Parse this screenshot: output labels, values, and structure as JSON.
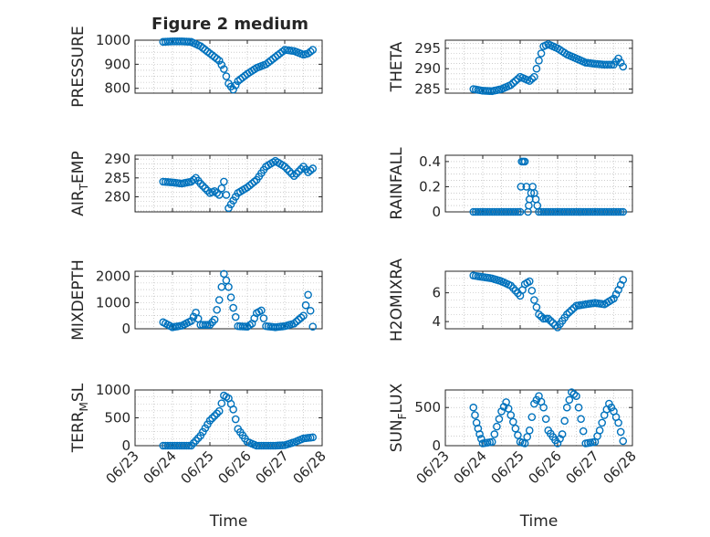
{
  "figure": {
    "title": "Figure 2 medium",
    "marker_color": "#0072BD",
    "marker": "circle-open"
  },
  "chart_data": [
    {
      "type": "scatter",
      "title": "Figure 2 medium",
      "ylabel": "PRESSURE",
      "xlabel": "",
      "ylim": [
        780,
        1000
      ],
      "yticks": [
        800,
        900,
        1000
      ],
      "ytick_labels": [
        "800",
        "900",
        "1000"
      ],
      "xlim": [
        "06/23",
        "06/28"
      ],
      "xticks": [
        "06/23",
        "06/24",
        "06/25",
        "06/26",
        "06/27",
        "06/28"
      ],
      "show_xticklabels": false,
      "grid": true,
      "x": [
        "06/23 18:00",
        "06/24 00:00",
        "06/24 06:00",
        "06/24 12:00",
        "06/24 18:00",
        "06/25 00:00",
        "06/25 03:00",
        "06/25 06:00",
        "06/25 09:00",
        "06/25 12:00",
        "06/25 15:00",
        "06/25 18:00",
        "06/26 00:00",
        "06/26 06:00",
        "06/26 12:00",
        "06/26 18:00",
        "06/27 00:00",
        "06/27 06:00",
        "06/27 12:00",
        "06/27 15:00",
        "06/27 18:00"
      ],
      "y": [
        993,
        995,
        995,
        993,
        975,
        945,
        930,
        915,
        880,
        820,
        795,
        830,
        860,
        885,
        900,
        930,
        960,
        955,
        940,
        945,
        960
      ]
    },
    {
      "type": "scatter",
      "ylabel": "THETA",
      "xlabel": "",
      "ylim": [
        284,
        297
      ],
      "yticks": [
        285,
        290,
        295
      ],
      "ytick_labels": [
        "285",
        "290",
        "295"
      ],
      "xlim": [
        "06/23",
        "06/28"
      ],
      "xticks": [
        "06/23",
        "06/24",
        "06/25",
        "06/26",
        "06/27",
        "06/28"
      ],
      "show_xticklabels": false,
      "grid": true,
      "x": [
        "06/23 18:00",
        "06/24 00:00",
        "06/24 06:00",
        "06/24 12:00",
        "06/24 18:00",
        "06/25 00:00",
        "06/25 06:00",
        "06/25 09:00",
        "06/25 12:00",
        "06/25 15:00",
        "06/25 18:00",
        "06/26 00:00",
        "06/26 06:00",
        "06/26 12:00",
        "06/26 18:00",
        "06/27 00:00",
        "06/27 06:00",
        "06/27 12:00",
        "06/27 15:00",
        "06/27 18:00"
      ],
      "y": [
        285,
        284.6,
        284.5,
        285,
        286,
        288,
        287,
        288,
        292,
        295.5,
        296,
        295,
        293.5,
        292.5,
        291.5,
        291.2,
        291,
        291,
        292.5,
        290.5
      ]
    },
    {
      "type": "scatter",
      "ylabel": "AIR_TEMP",
      "ylabel_parts": [
        "AIR",
        "T",
        "EMP"
      ],
      "xlabel": "",
      "ylim": [
        276,
        291
      ],
      "yticks": [
        280,
        285,
        290
      ],
      "ytick_labels": [
        "280",
        "285",
        "290"
      ],
      "xlim": [
        "06/23",
        "06/28"
      ],
      "xticks": [
        "06/23",
        "06/24",
        "06/25",
        "06/26",
        "06/27",
        "06/28"
      ],
      "show_xticklabels": false,
      "grid": true,
      "x": [
        "06/23 18:00",
        "06/24 00:00",
        "06/24 06:00",
        "06/24 12:00",
        "06/24 15:00",
        "06/24 18:00",
        "06/25 00:00",
        "06/25 03:00",
        "06/25 06:00",
        "06/25 09:00",
        "06/25 12:00",
        "06/25 15:00",
        "06/25 18:00",
        "06/26 00:00",
        "06/26 06:00",
        "06/26 12:00",
        "06/26 18:00",
        "06/27 00:00",
        "06/27 06:00",
        "06/27 12:00",
        "06/27 15:00",
        "06/27 18:00"
      ],
      "y": [
        284,
        283.8,
        283.5,
        284,
        285,
        283.5,
        281,
        281.5,
        280.5,
        284,
        277,
        279,
        281,
        282.5,
        284.5,
        288,
        289.5,
        288,
        285.5,
        288,
        286.5,
        287.5
      ]
    },
    {
      "type": "scatter",
      "ylabel": "RAINFALL",
      "xlabel": "",
      "ylim": [
        0,
        0.45
      ],
      "yticks": [
        0,
        0.2,
        0.4
      ],
      "ytick_labels": [
        "0",
        "0.2",
        "0.4"
      ],
      "xlim": [
        "06/23",
        "06/28"
      ],
      "xticks": [
        "06/23",
        "06/24",
        "06/25",
        "06/26",
        "06/27",
        "06/28"
      ],
      "show_xticklabels": false,
      "grid": true,
      "x": [
        "06/23 18:00",
        "06/24 00:00",
        "06/24 06:00",
        "06/24 12:00",
        "06/24 18:00",
        "06/25 00:00",
        "06/25 01:00",
        "06/25 03:00",
        "06/25 05:00",
        "06/25 06:00",
        "06/25 08:00",
        "06/25 10:00",
        "06/25 12:00",
        "06/25 18:00",
        "06/26 00:00",
        "06/26 12:00",
        "06/27 00:00",
        "06/27 12:00",
        "06/27 18:00"
      ],
      "y": [
        0,
        0,
        0,
        0,
        0,
        0,
        0.4,
        0.4,
        0,
        0.1,
        0.2,
        0.1,
        0,
        0,
        0,
        0,
        0,
        0,
        0
      ]
    },
    {
      "type": "scatter",
      "ylabel": "MIXDEPTH",
      "xlabel": "",
      "ylim": [
        0,
        2200
      ],
      "yticks": [
        0,
        1000,
        2000
      ],
      "ytick_labels": [
        "0",
        "1000",
        "2000"
      ],
      "xlim": [
        "06/23",
        "06/28"
      ],
      "xticks": [
        "06/23",
        "06/24",
        "06/25",
        "06/26",
        "06/27",
        "06/28"
      ],
      "show_xticklabels": false,
      "grid": true,
      "x": [
        "06/23 18:00",
        "06/24 00:00",
        "06/24 06:00",
        "06/24 12:00",
        "06/24 15:00",
        "06/24 18:00",
        "06/25 00:00",
        "06/25 03:00",
        "06/25 06:00",
        "06/25 09:00",
        "06/25 12:00",
        "06/25 15:00",
        "06/25 18:00",
        "06/26 00:00",
        "06/26 03:00",
        "06/26 06:00",
        "06/26 09:00",
        "06/26 12:00",
        "06/26 18:00",
        "06/27 00:00",
        "06/27 06:00",
        "06/27 12:00",
        "06/27 15:00",
        "06/27 18:00"
      ],
      "y": [
        250,
        60,
        120,
        300,
        620,
        150,
        150,
        350,
        1100,
        2100,
        1600,
        800,
        100,
        80,
        200,
        600,
        700,
        100,
        60,
        100,
        200,
        500,
        1300,
        80
      ]
    },
    {
      "type": "scatter",
      "ylabel": "H2OMIXRA",
      "xlabel": "",
      "ylim": [
        3.5,
        7.5
      ],
      "yticks": [
        4,
        6
      ],
      "ytick_labels": [
        "4",
        "6"
      ],
      "xlim": [
        "06/23",
        "06/28"
      ],
      "xticks": [
        "06/23",
        "06/24",
        "06/25",
        "06/26",
        "06/27",
        "06/28"
      ],
      "show_xticklabels": false,
      "grid": true,
      "x": [
        "06/23 18:00",
        "06/24 00:00",
        "06/24 06:00",
        "06/24 12:00",
        "06/24 18:00",
        "06/25 00:00",
        "06/25 03:00",
        "06/25 06:00",
        "06/25 09:00",
        "06/25 12:00",
        "06/25 15:00",
        "06/25 18:00",
        "06/26 00:00",
        "06/26 06:00",
        "06/26 12:00",
        "06/26 18:00",
        "06/27 00:00",
        "06/27 06:00",
        "06/27 12:00",
        "06/27 15:00",
        "06/27 18:00"
      ],
      "y": [
        7.2,
        7.1,
        7,
        6.8,
        6.5,
        5.8,
        6.6,
        6.8,
        5.5,
        4.5,
        4.2,
        4.2,
        3.6,
        4.5,
        5.1,
        5.2,
        5.3,
        5.2,
        5.6,
        6.2,
        6.9
      ]
    },
    {
      "type": "scatter",
      "ylabel": "TERR_MSL",
      "ylabel_parts": [
        "TERR",
        "M",
        "SL"
      ],
      "xlabel": "Time",
      "ylim": [
        0,
        1000
      ],
      "yticks": [
        0,
        500,
        1000
      ],
      "ytick_labels": [
        "0",
        "500",
        "1000"
      ],
      "xlim": [
        "06/23",
        "06/28"
      ],
      "xticks": [
        "06/23",
        "06/24",
        "06/25",
        "06/26",
        "06/27",
        "06/28"
      ],
      "xtick_labels": [
        "06/23",
        "06/24",
        "06/25",
        "06/26",
        "06/27",
        "06/28"
      ],
      "show_xticklabels": true,
      "grid": true,
      "x": [
        "06/23 18:00",
        "06/24 00:00",
        "06/24 06:00",
        "06/24 12:00",
        "06/24 18:00",
        "06/25 00:00",
        "06/25 06:00",
        "06/25 09:00",
        "06/25 12:00",
        "06/25 15:00",
        "06/25 18:00",
        "06/26 00:00",
        "06/26 06:00",
        "06/26 12:00",
        "06/26 18:00",
        "06/27 00:00",
        "06/27 06:00",
        "06/27 12:00",
        "06/27 18:00"
      ],
      "y": [
        0,
        0,
        0,
        0,
        180,
        450,
        620,
        900,
        850,
        650,
        300,
        70,
        0,
        0,
        0,
        10,
        60,
        130,
        150
      ]
    },
    {
      "type": "scatter",
      "ylabel": "SUN_FLUX",
      "ylabel_parts": [
        "SUN",
        "F",
        "LUX"
      ],
      "xlabel": "Time",
      "ylim": [
        0,
        730
      ],
      "yticks": [
        0,
        500
      ],
      "ytick_labels": [
        "0",
        "500"
      ],
      "xlim": [
        "06/23",
        "06/28"
      ],
      "xticks": [
        "06/23",
        "06/24",
        "06/25",
        "06/26",
        "06/27",
        "06/28"
      ],
      "xtick_labels": [
        "06/23",
        "06/24",
        "06/25",
        "06/26",
        "06/27",
        "06/28"
      ],
      "show_xticklabels": true,
      "grid": true,
      "x": [
        "06/23 18:00",
        "06/23 20:00",
        "06/23 22:00",
        "06/24 00:00",
        "06/24 06:00",
        "06/24 12:00",
        "06/24 15:00",
        "06/24 18:00",
        "06/25 00:00",
        "06/25 03:00",
        "06/25 06:00",
        "06/25 09:00",
        "06/25 12:00",
        "06/25 15:00",
        "06/25 18:00",
        "06/26 00:00",
        "06/26 03:00",
        "06/26 06:00",
        "06/26 09:00",
        "06/26 12:00",
        "06/26 15:00",
        "06/26 18:00",
        "06/27 00:00",
        "06/27 03:00",
        "06/27 06:00",
        "06/27 09:00",
        "06/27 12:00",
        "06/27 15:00",
        "06/27 18:00"
      ],
      "y": [
        500,
        300,
        150,
        30,
        50,
        450,
        570,
        400,
        50,
        30,
        200,
        550,
        650,
        500,
        200,
        30,
        150,
        500,
        700,
        650,
        350,
        30,
        50,
        200,
        400,
        550,
        450,
        300,
        60
      ]
    }
  ]
}
